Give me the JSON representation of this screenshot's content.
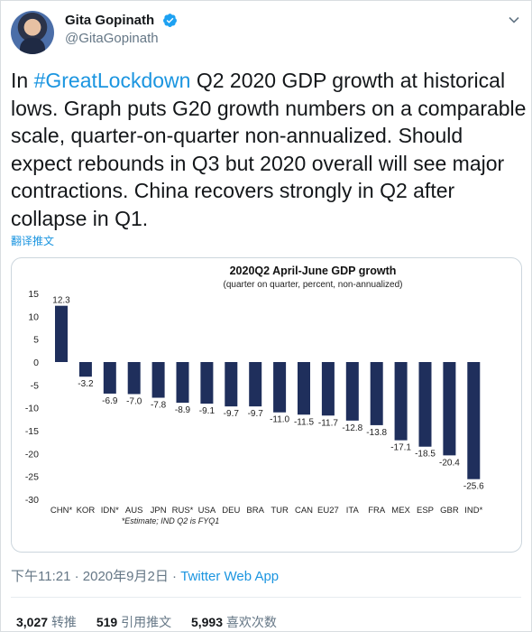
{
  "author": {
    "name": "Gita Gopinath",
    "handle": "@GitaGopinath"
  },
  "tweet": {
    "hashtag": "#GreatLockdown",
    "text_after_hashtag": " Q2 2020 GDP growth at historical lows. Graph puts G20 growth numbers on a comparable scale, quarter-on-quarter non-annualized. Should expect rebounds in Q3 but 2020 overall will see major contractions. China recovers strongly in Q2 after collapse in Q1.",
    "prefix": "In ",
    "translate_label": "翻译推文"
  },
  "meta": {
    "time": "下午11:21",
    "date": "2020年9月2日",
    "separator": " · ",
    "source": "Twitter Web App"
  },
  "stats": {
    "retweets_count": "3,027",
    "retweets_label": "转推",
    "quotes_count": "519",
    "quotes_label": "引用推文",
    "likes_count": "5,993",
    "likes_label": "喜欢次数"
  },
  "colors": {
    "bar": "#1f2f5c",
    "link": "#1b95e0"
  },
  "chart_data": {
    "type": "bar",
    "title": "2020Q2 April-June GDP growth",
    "subtitle": "(quarter on quarter, percent, non-annualized)",
    "footnote": "*Estimate; IND Q2 is FYQ1",
    "categories": [
      "CHN*",
      "KOR",
      "IDN*",
      "AUS",
      "JPN",
      "RUS*",
      "USA",
      "DEU",
      "BRA",
      "TUR",
      "CAN",
      "EU27",
      "ITA",
      "FRA",
      "MEX",
      "ESP",
      "GBR",
      "IND*"
    ],
    "values": [
      12.3,
      -3.2,
      -6.9,
      -7.0,
      -7.8,
      -8.9,
      -9.1,
      -9.7,
      -9.7,
      -11.0,
      -11.5,
      -11.7,
      -12.8,
      -13.8,
      -17.1,
      -18.5,
      -20.4,
      -25.6
    ],
    "value_labels": [
      "12.3",
      "-3.2",
      "-6.9",
      "-7.0",
      "-7.8",
      "-8.9",
      "-9.1",
      "-9.7",
      "-9.7",
      "-11.0",
      "-11.5",
      "-11.7",
      "-12.8",
      "-13.8",
      "-17.1",
      "-18.5",
      "-20.4",
      "-25.6"
    ],
    "ylim": [
      -30,
      15
    ],
    "yticks": [
      "15",
      "10",
      "5",
      "0",
      "-5",
      "-10",
      "-15",
      "-20",
      "-25",
      "-30"
    ],
    "ytick_values": [
      15,
      10,
      5,
      0,
      -5,
      -10,
      -15,
      -20,
      -25,
      -30
    ],
    "grid": false
  }
}
